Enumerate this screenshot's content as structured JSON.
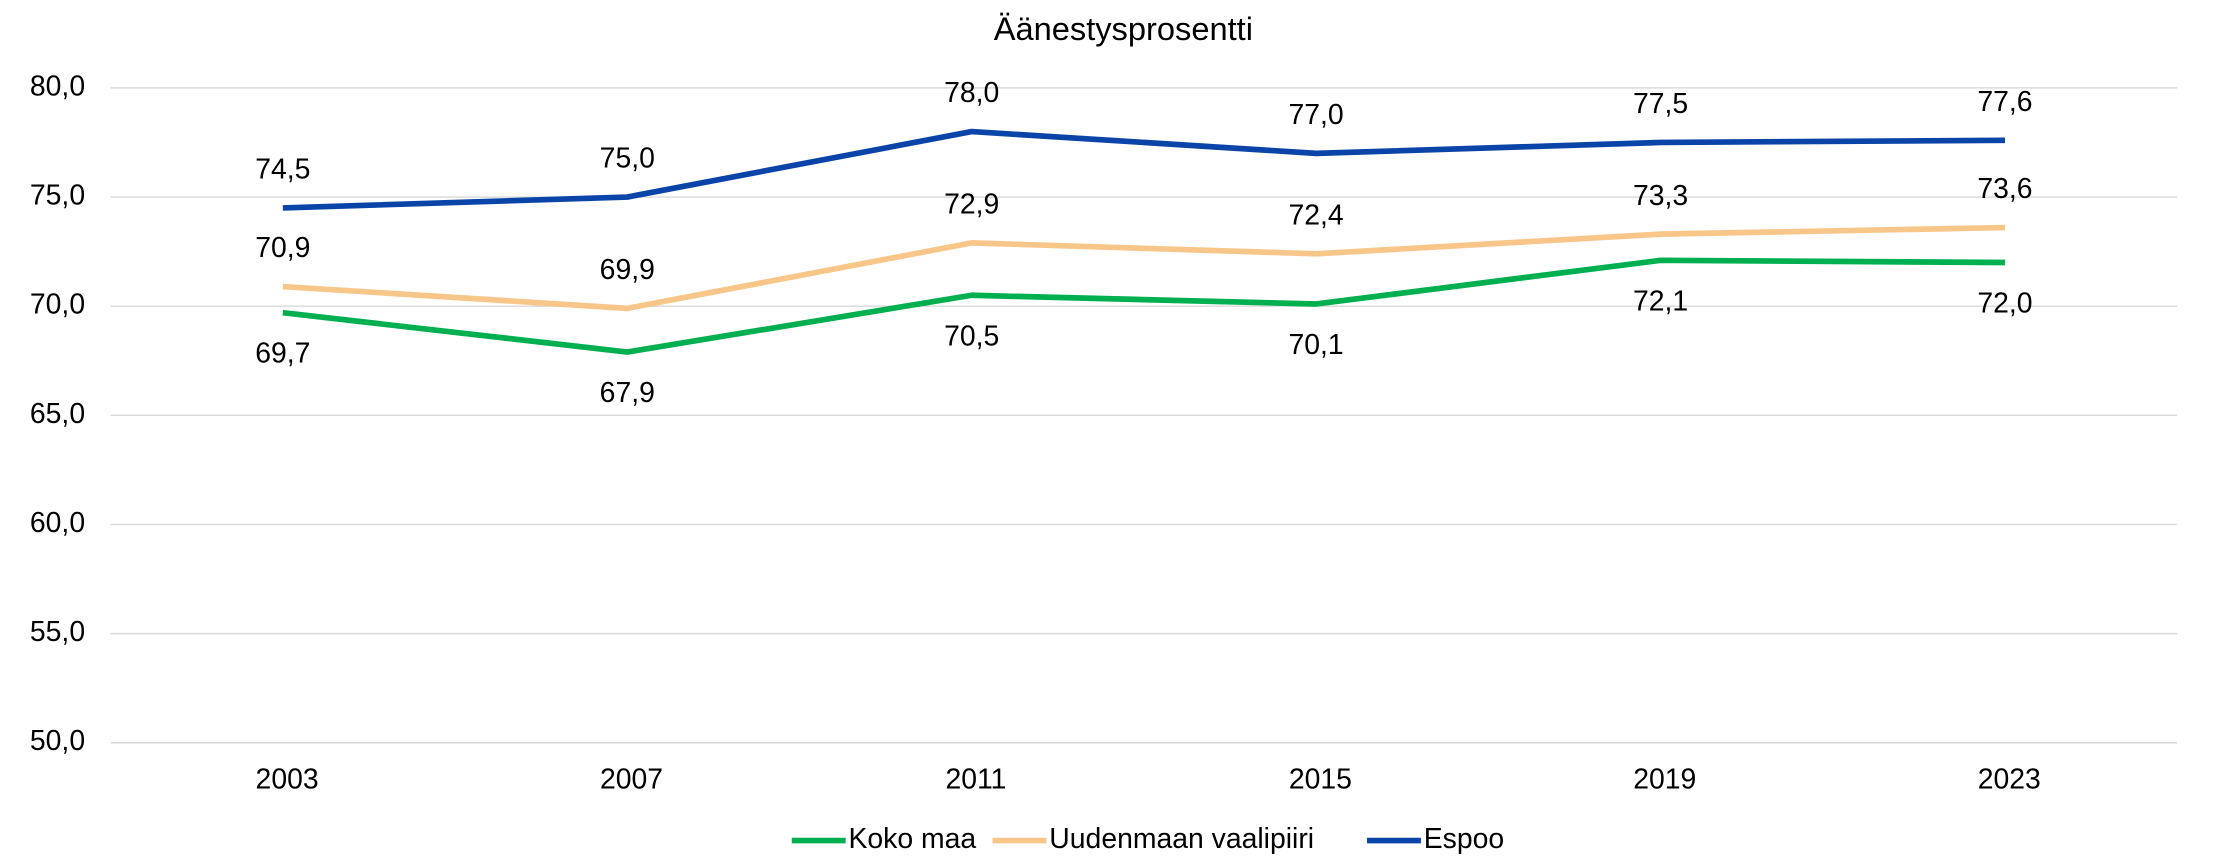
{
  "chart_data": {
    "type": "line",
    "title": "Äänestysprosentti",
    "categories": [
      "2003",
      "2007",
      "2011",
      "2015",
      "2019",
      "2023"
    ],
    "series": [
      {
        "name": "Koko maa",
        "color": "#00b050",
        "values": [
          69.7,
          67.9,
          70.5,
          70.1,
          72.1,
          72.0
        ],
        "value_labels": [
          "69,7",
          "67,9",
          "70,5",
          "70,1",
          "72,1",
          "72,0"
        ]
      },
      {
        "name": "Uudenmaan vaalipiiri",
        "color": "#f9c68a",
        "values": [
          70.9,
          69.9,
          72.9,
          72.4,
          73.3,
          73.6
        ],
        "value_labels": [
          "70,9",
          "69,9",
          "72,9",
          "72,4",
          "73,3",
          "73,6"
        ]
      },
      {
        "name": "Espoo",
        "color": "#0b44a8",
        "values": [
          74.5,
          75.0,
          78.0,
          77.0,
          77.5,
          77.6
        ],
        "value_labels": [
          "74,5",
          "75,0",
          "78,0",
          "77,0",
          "77,5",
          "77,6"
        ]
      }
    ],
    "ylim": [
      50,
      80
    ],
    "yticks": [
      {
        "value": 50,
        "label": "50,0"
      },
      {
        "value": 55,
        "label": "55,0"
      },
      {
        "value": 60,
        "label": "60,0"
      },
      {
        "value": 65,
        "label": "65,0"
      },
      {
        "value": 70,
        "label": "70,0"
      },
      {
        "value": 75,
        "label": "75,0"
      },
      {
        "value": 80,
        "label": "80,0"
      }
    ],
    "grid": true,
    "legend": "bottom"
  }
}
